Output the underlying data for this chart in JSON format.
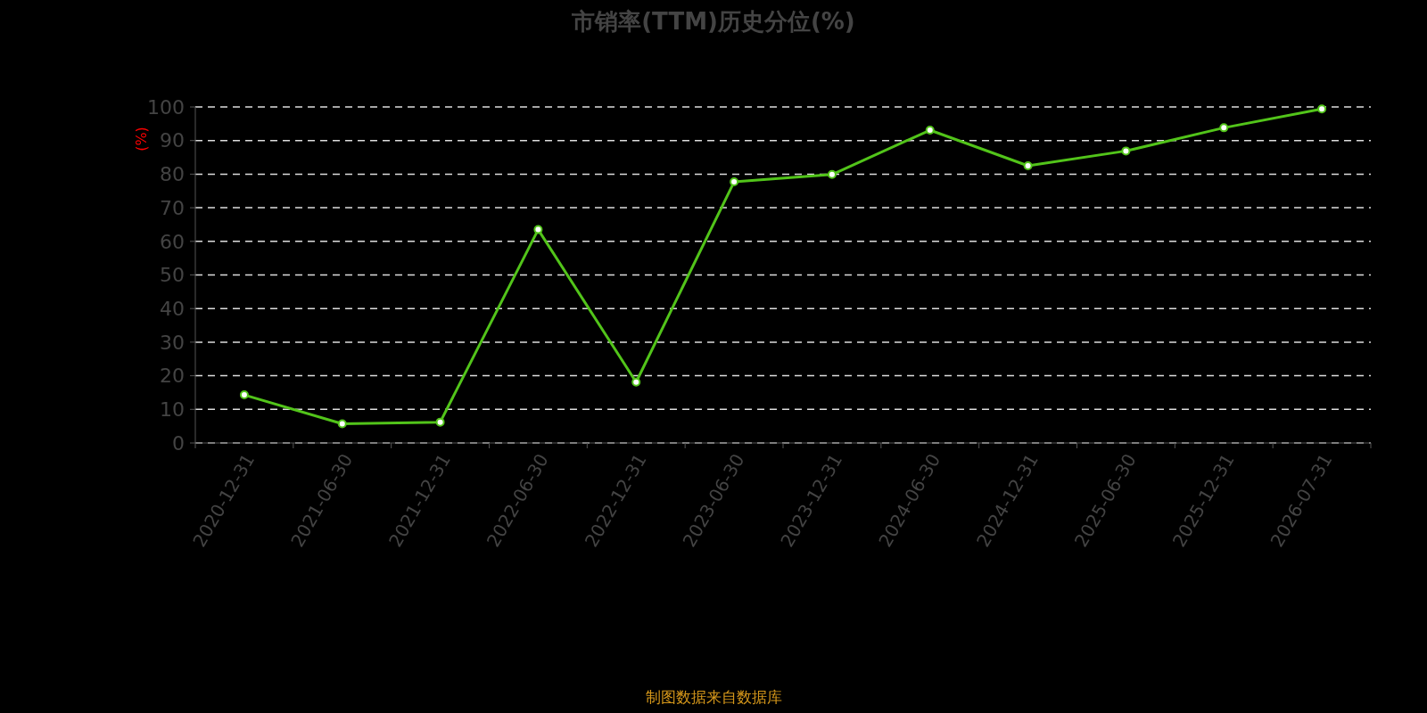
{
  "chart_data": {
    "type": "line",
    "title": "市销率(TTM)历史分位(%)",
    "ylabel": "(%)",
    "annotations": [
      "制图数据来自数据库"
    ],
    "categories": [
      "2020-12-31",
      "2021-06-30",
      "2021-12-31",
      "2022-06-30",
      "2022-12-31",
      "2023-06-30",
      "2023-12-31",
      "2024-06-30",
      "2024-12-31",
      "2025-06-30",
      "2025-12-31",
      "2026-07-31"
    ],
    "series": [
      {
        "color": "#52c41a",
        "values": [
          14.3,
          5.7,
          6.2,
          63.5,
          18.1,
          77.7,
          79.9,
          93.1,
          82.5,
          86.9,
          93.8,
          99.4
        ]
      }
    ],
    "ylim": [
      0,
      100
    ],
    "yticks": [
      0,
      10,
      20,
      30,
      40,
      50,
      60,
      70,
      80,
      90,
      100
    ],
    "grid": "y",
    "marker": "circle",
    "line_style": "solid"
  }
}
